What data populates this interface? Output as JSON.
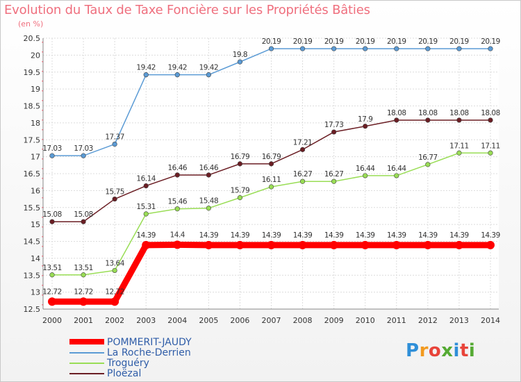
{
  "title": "Evolution du Taux de Taxe Foncière sur les Propriétés Bâties",
  "unit_label": "(en %)",
  "logo_text": "Proxiti",
  "chart_data": {
    "type": "line",
    "categories": [
      "2000",
      "2001",
      "2002",
      "2003",
      "2004",
      "2005",
      "2006",
      "2007",
      "2008",
      "2009",
      "2010",
      "2011",
      "2012",
      "2013",
      "2014"
    ],
    "ylim": [
      12.5,
      20.5
    ],
    "yticks": [
      "12.5",
      "13",
      "13.5",
      "14",
      "14.5",
      "15",
      "15.5",
      "16",
      "16.5",
      "17",
      "17.5",
      "18",
      "18.5",
      "19",
      "19.5",
      "20",
      "20.5"
    ],
    "grid": true,
    "legend_position": "bottom-left",
    "series": [
      {
        "name": "POMMERIT-JAUDY",
        "color": "#ff0000",
        "values": [
          12.72,
          12.72,
          12.72,
          14.39,
          14.4,
          14.39,
          14.39,
          14.39,
          14.39,
          14.39,
          14.39,
          14.39,
          14.39,
          14.39,
          14.39
        ],
        "labels": [
          "12.72",
          "12.72",
          "12.72",
          "14.39",
          "14.4",
          "14.39",
          "14.39",
          "14.39",
          "14.39",
          "14.39",
          "14.39",
          "14.39",
          "14.39",
          "14.39",
          "14.39"
        ]
      },
      {
        "name": "La Roche-Derrien",
        "color": "#5b9bd5",
        "values": [
          17.03,
          17.03,
          17.37,
          19.42,
          19.42,
          19.42,
          19.8,
          20.19,
          20.19,
          20.19,
          20.19,
          20.19,
          20.19,
          20.19,
          20.19
        ],
        "labels": [
          "17.03",
          "17.03",
          "17.37",
          "19.42",
          "19.42",
          "19.42",
          "19.8",
          "20.19",
          "20.19",
          "20.19",
          "20.19",
          "20.19",
          "20.19",
          "20.19",
          "20.19"
        ]
      },
      {
        "name": "Troguéry",
        "color": "#99dd55",
        "values": [
          13.51,
          13.51,
          13.64,
          15.31,
          15.46,
          15.48,
          15.79,
          16.11,
          16.27,
          16.27,
          16.44,
          16.44,
          16.77,
          17.11,
          17.11
        ],
        "labels": [
          "13.51",
          "13.51",
          "13.64",
          "15.31",
          "15.46",
          "15.48",
          "15.79",
          "16.11",
          "16.27",
          "16.27",
          "16.44",
          "16.44",
          "16.77",
          "17.11",
          "17.11"
        ]
      },
      {
        "name": "Ploëzal",
        "color": "#6b1e24",
        "values": [
          15.08,
          15.08,
          15.75,
          16.14,
          16.46,
          16.46,
          16.79,
          16.79,
          17.21,
          17.73,
          17.9,
          18.08,
          18.08,
          18.08,
          18.08
        ],
        "labels": [
          "15.08",
          "15.08",
          "15.75",
          "16.14",
          "16.46",
          "16.46",
          "16.79",
          "16.79",
          "17.21",
          "17.73",
          "17.9",
          "18.08",
          "18.08",
          "18.08",
          "18.08"
        ]
      }
    ]
  }
}
